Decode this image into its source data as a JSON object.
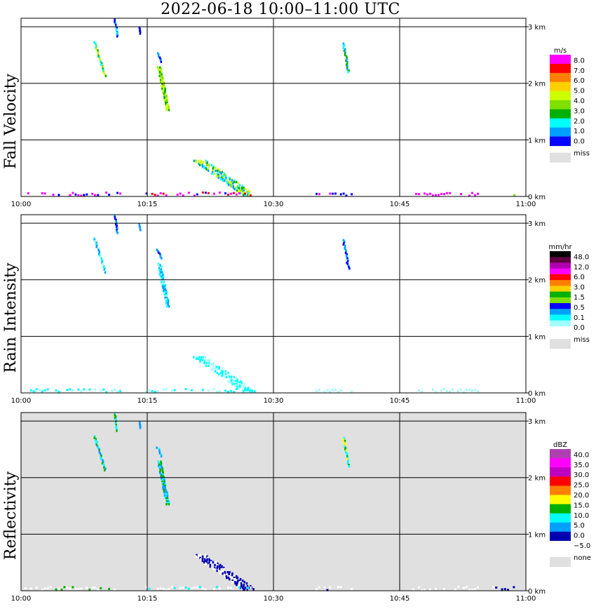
{
  "title": "2022-06-18   10:00–11:00 UTC",
  "chart_data": [
    {
      "type": "heatmap",
      "ylabel": "Fall Velocity",
      "x_ticks": [
        "10:00",
        "10:15",
        "10:30",
        "10:45",
        "11:00"
      ],
      "xlim_minutes": [
        0,
        60
      ],
      "y_ticks": [
        "0 km",
        "1 km",
        "2 km",
        "3 km"
      ],
      "ylim_km": [
        0,
        3.15
      ],
      "grid": true,
      "background": "#ffffff",
      "legend": {
        "unit": "m/s",
        "position": "right",
        "labels": [
          "8.0",
          "7.0",
          "6.0",
          "5.0",
          "4.0",
          "3.0",
          "2.0",
          "1.0",
          "0.0"
        ],
        "colors": [
          "#ff00ff",
          "#ff0000",
          "#ff8000",
          "#ffd000",
          "#ccff00",
          "#80e000",
          "#00b000",
          "#00ffff",
          "#00a0ff",
          "#0000ff"
        ],
        "miss_label": "miss",
        "miss_color": "#e0e0e0"
      },
      "features": [
        {
          "t0": 8.7,
          "t1": 10.0,
          "h0": 2.75,
          "h1": 2.15,
          "w": 0.35,
          "colors": [
            "#00b000",
            "#80e000",
            "#00ffff",
            "#ccff00"
          ]
        },
        {
          "t0": 11.1,
          "t1": 11.4,
          "h0": 3.15,
          "h1": 2.85,
          "w": 0.3,
          "colors": [
            "#00a0ff",
            "#0000ff",
            "#00ffff"
          ]
        },
        {
          "t0": 14.0,
          "t1": 14.1,
          "h0": 3.0,
          "h1": 2.9,
          "w": 0.12,
          "colors": [
            "#0000ff"
          ]
        },
        {
          "t0": 16.2,
          "t1": 16.7,
          "h0": 2.55,
          "h1": 2.4,
          "w": 0.35,
          "colors": [
            "#00a0ff",
            "#0000ff"
          ]
        },
        {
          "t0": 16.4,
          "t1": 17.4,
          "h0": 2.3,
          "h1": 1.55,
          "w": 0.5,
          "colors": [
            "#00b000",
            "#80e000",
            "#ccff00"
          ]
        },
        {
          "t0": 38.3,
          "t1": 38.9,
          "h0": 2.72,
          "h1": 2.22,
          "w": 0.35,
          "colors": [
            "#00b000",
            "#00a0ff",
            "#00ffff"
          ]
        },
        {
          "t0": 21.2,
          "t1": 27.0,
          "h0": 0.65,
          "h1": 0.05,
          "w": 1.6,
          "colors": [
            "#00b000",
            "#80e000",
            "#ccff00",
            "#00ffff",
            "#00a0ff"
          ]
        }
      ],
      "surface": [
        {
          "t0": 0.4,
          "t1": 12.0,
          "colors": [
            "#ff00ff",
            "#ff00ff",
            "#0000ff"
          ]
        },
        {
          "t0": 14.8,
          "t1": 27.5,
          "colors": [
            "#ff00ff",
            "#ff00ff",
            "#0000ff",
            "#ff0000"
          ]
        },
        {
          "t0": 35.0,
          "t1": 39.5,
          "colors": [
            "#ff00ff",
            "#0000ff"
          ]
        },
        {
          "t0": 46.5,
          "t1": 54.5,
          "colors": [
            "#ff00ff",
            "#ff00ff"
          ]
        },
        {
          "t0": 58.5,
          "t1": 58.8,
          "colors": [
            "#80e000"
          ]
        }
      ]
    },
    {
      "type": "heatmap",
      "ylabel": "Rain Intensity",
      "x_ticks": [
        "10:00",
        "10:15",
        "10:30",
        "10:45",
        "11:00"
      ],
      "xlim_minutes": [
        0,
        60
      ],
      "y_ticks": [
        "0 km",
        "1 km",
        "2 km",
        "3 km"
      ],
      "ylim_km": [
        0,
        3.15
      ],
      "grid": true,
      "background": "#ffffff",
      "legend": {
        "unit": "mm/hr",
        "position": "right",
        "labels": [
          "48.0",
          "12.0",
          "6.0",
          "3.0",
          "1.5",
          "0.5",
          "0.1",
          "0.0"
        ],
        "colors": [
          "#000000",
          "#600040",
          "#b000b0",
          "#ff00ff",
          "#ff0000",
          "#ff8000",
          "#ffd000",
          "#00b000",
          "#80e000",
          "#0000ff",
          "#00a0ff",
          "#00ffff",
          "#a0ffff",
          "#ffffff"
        ],
        "miss_label": "miss",
        "miss_color": "#e0e0e0"
      },
      "features": [
        {
          "t0": 8.7,
          "t1": 10.0,
          "h0": 2.75,
          "h1": 2.15,
          "w": 0.35,
          "colors": [
            "#00a0ff",
            "#00ffff",
            "#a0ffff"
          ]
        },
        {
          "t0": 11.1,
          "t1": 11.4,
          "h0": 3.15,
          "h1": 2.85,
          "w": 0.3,
          "colors": [
            "#0000ff",
            "#00a0ff"
          ]
        },
        {
          "t0": 14.0,
          "t1": 14.1,
          "h0": 3.0,
          "h1": 2.9,
          "w": 0.12,
          "colors": [
            "#00a0ff"
          ]
        },
        {
          "t0": 16.2,
          "t1": 16.7,
          "h0": 2.55,
          "h1": 2.4,
          "w": 0.35,
          "colors": [
            "#0000ff",
            "#00a0ff"
          ]
        },
        {
          "t0": 16.4,
          "t1": 17.4,
          "h0": 2.3,
          "h1": 1.55,
          "w": 0.5,
          "colors": [
            "#00ffff",
            "#a0ffff",
            "#00a0ff"
          ]
        },
        {
          "t0": 38.3,
          "t1": 38.9,
          "h0": 2.72,
          "h1": 2.22,
          "w": 0.35,
          "colors": [
            "#0000ff",
            "#00a0ff"
          ]
        },
        {
          "t0": 21.2,
          "t1": 27.0,
          "h0": 0.65,
          "h1": 0.05,
          "w": 1.6,
          "colors": [
            "#a0ffff",
            "#00ffff"
          ]
        }
      ],
      "surface": [
        {
          "t0": 0.4,
          "t1": 12.0,
          "colors": [
            "#a0ffff",
            "#00ffff"
          ]
        },
        {
          "t0": 14.8,
          "t1": 27.5,
          "colors": [
            "#a0ffff",
            "#00ffff"
          ]
        },
        {
          "t0": 35.0,
          "t1": 39.5,
          "colors": [
            "#a0ffff"
          ]
        },
        {
          "t0": 46.5,
          "t1": 54.5,
          "colors": [
            "#a0ffff"
          ]
        },
        {
          "t0": 58.5,
          "t1": 58.8,
          "colors": [
            "#a0ffff"
          ]
        }
      ]
    },
    {
      "type": "heatmap",
      "ylabel": "Reflectivity",
      "x_ticks": [
        "10:00",
        "10:15",
        "10:30",
        "10:45",
        "11:00"
      ],
      "xlim_minutes": [
        0,
        60
      ],
      "y_ticks": [
        "0 km",
        "1 km",
        "2 km",
        "3 km"
      ],
      "ylim_km": [
        0,
        3.15
      ],
      "grid": true,
      "background": "#e0e0e0",
      "legend": {
        "unit": "dBZ",
        "position": "right",
        "labels": [
          "40.0",
          "35.0",
          "30.0",
          "25.0",
          "20.0",
          "15.0",
          "10.0",
          "5.0",
          "0.0",
          "−5.0"
        ],
        "colors": [
          "#b040b0",
          "#ff00ff",
          "#c000c0",
          "#ff0000",
          "#ff8000",
          "#ffff00",
          "#00b000",
          "#00ffff",
          "#00a0ff",
          "#0000b0",
          "#ffffff"
        ],
        "miss_label": "none",
        "miss_color": "#e0e0e0"
      },
      "features": [
        {
          "t0": 8.7,
          "t1": 10.0,
          "h0": 2.75,
          "h1": 2.15,
          "w": 0.35,
          "colors": [
            "#00b000",
            "#00ffff",
            "#00a0ff"
          ]
        },
        {
          "t0": 11.1,
          "t1": 11.4,
          "h0": 3.15,
          "h1": 2.85,
          "w": 0.3,
          "colors": [
            "#00b000",
            "#00ffff"
          ]
        },
        {
          "t0": 14.0,
          "t1": 14.1,
          "h0": 3.0,
          "h1": 2.9,
          "w": 0.12,
          "colors": [
            "#00a0ff"
          ]
        },
        {
          "t0": 16.2,
          "t1": 16.7,
          "h0": 2.55,
          "h1": 2.4,
          "w": 0.35,
          "colors": [
            "#00ffff",
            "#00a0ff"
          ]
        },
        {
          "t0": 16.4,
          "t1": 17.4,
          "h0": 2.3,
          "h1": 1.55,
          "w": 0.5,
          "colors": [
            "#00b000",
            "#00ffff",
            "#00a0ff"
          ]
        },
        {
          "t0": 38.3,
          "t1": 38.9,
          "h0": 2.72,
          "h1": 2.22,
          "w": 0.35,
          "colors": [
            "#00b000",
            "#ffff00",
            "#00ffff"
          ]
        },
        {
          "t0": 21.2,
          "t1": 27.0,
          "h0": 0.65,
          "h1": 0.05,
          "w": 1.6,
          "colors": [
            "#0000b0",
            "#0000b0",
            "#ffffff"
          ]
        }
      ],
      "surface": [
        {
          "t0": 0.4,
          "t1": 12.0,
          "colors": [
            "#ffffff",
            "#ffffff",
            "#00b000"
          ]
        },
        {
          "t0": 14.8,
          "t1": 27.5,
          "colors": [
            "#ffffff",
            "#ffffff",
            "#00ffff"
          ]
        },
        {
          "t0": 35.0,
          "t1": 39.5,
          "colors": [
            "#ffffff",
            "#0000b0"
          ]
        },
        {
          "t0": 46.5,
          "t1": 54.5,
          "colors": [
            "#ffffff"
          ]
        },
        {
          "t0": 56.0,
          "t1": 58.8,
          "colors": [
            "#ffffff",
            "#0000b0"
          ]
        }
      ]
    }
  ]
}
